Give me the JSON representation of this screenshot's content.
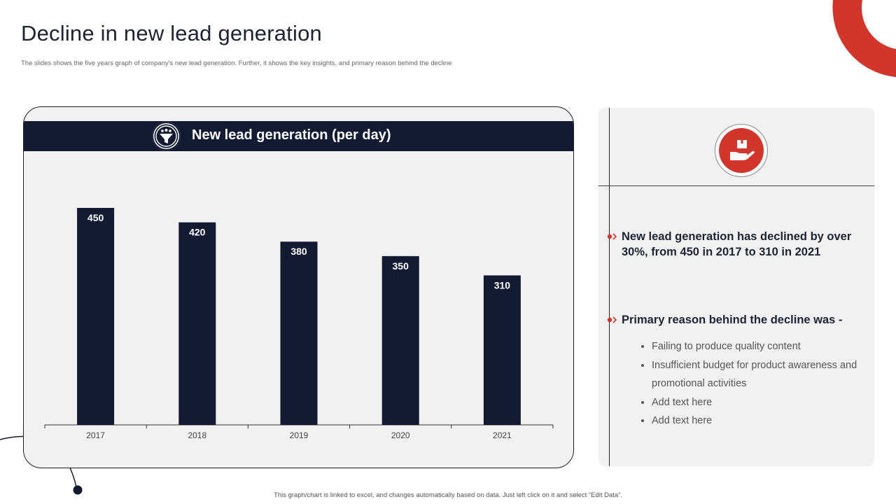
{
  "page": {
    "title": "Decline in new lead generation",
    "subtitle": "The slides shows the five years graph of company's new lead generation. Further, it shows the key insights, and primary reason behind the decline",
    "footer": "This graph/chart is linked to excel, and changes automatically based on data. Just left click on it and select “Edit Data”."
  },
  "colors": {
    "accent_red": "#d1352b",
    "navy": "#151a33",
    "panel_bg": "#f1f1f2"
  },
  "icons": {
    "chart_header_icon": "funnel-people-icon",
    "insight_icon": "hand-holding-box-icon",
    "bullet_icon": "red-dot-chevron-icon"
  },
  "chart_data": {
    "type": "bar",
    "title": "New lead generation (per day)",
    "categories": [
      "2017",
      "2018",
      "2019",
      "2020",
      "2021"
    ],
    "values": [
      450,
      420,
      380,
      350,
      310
    ],
    "xlabel": "",
    "ylabel": "",
    "ylim": [
      0,
      450
    ],
    "grid": false,
    "data_labels": true,
    "bar_color": "#151a33"
  },
  "insights": {
    "point1": {
      "line1": "New lead generation has declined by over",
      "line2": "30%, from 450 in 2017 to 310 in 2021"
    },
    "point2": {
      "heading": "Primary reason behind the decline was -"
    },
    "reasons": [
      "Failing to produce quality content",
      "Insufficient budget for product awareness and promotional activities",
      "Add text here",
      "Add text here"
    ]
  }
}
